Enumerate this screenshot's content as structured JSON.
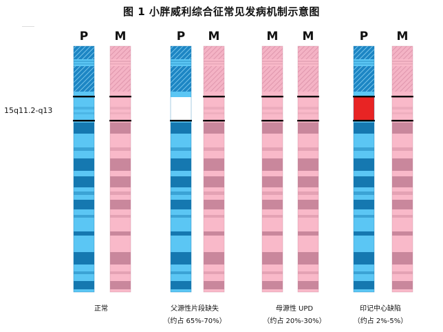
{
  "title": "图 1  小胖威利综合征常见发病机制示意图",
  "region_label": "15q11.2-q13",
  "colors": {
    "paternal_light": "#5bc6f4",
    "paternal_dark": "#1578b0",
    "maternal_light": "#f9b9c9",
    "maternal_dark": "#c9879c",
    "imprint_defect": "#e82424",
    "boundary": "#000000",
    "deletion": "#ffffff"
  },
  "groups": [
    {
      "id": "normal",
      "chromosomes": [
        {
          "label": "P",
          "origin": "paternal",
          "variant": "normal"
        },
        {
          "label": "M",
          "origin": "maternal",
          "variant": "normal"
        }
      ],
      "caption_line1": "正常",
      "caption_line2": ""
    },
    {
      "id": "deletion",
      "chromosomes": [
        {
          "label": "P",
          "origin": "paternal",
          "variant": "deletion"
        },
        {
          "label": "M",
          "origin": "maternal",
          "variant": "normal"
        }
      ],
      "caption_line1": "父源性片段缺失",
      "caption_line2": "（约占 65%-70%）"
    },
    {
      "id": "upd",
      "chromosomes": [
        {
          "label": "M",
          "origin": "maternal",
          "variant": "normal"
        },
        {
          "label": "M",
          "origin": "maternal",
          "variant": "normal"
        }
      ],
      "caption_line1": "母源性 UPD",
      "caption_line2": "（约占 20%-30%）"
    },
    {
      "id": "imprint",
      "chromosomes": [
        {
          "label": "P",
          "origin": "paternal",
          "variant": "imprint"
        },
        {
          "label": "M",
          "origin": "maternal",
          "variant": "normal"
        }
      ],
      "caption_line1": "印记中心缺陷",
      "caption_line2": "（约占 2%-5%）"
    }
  ]
}
